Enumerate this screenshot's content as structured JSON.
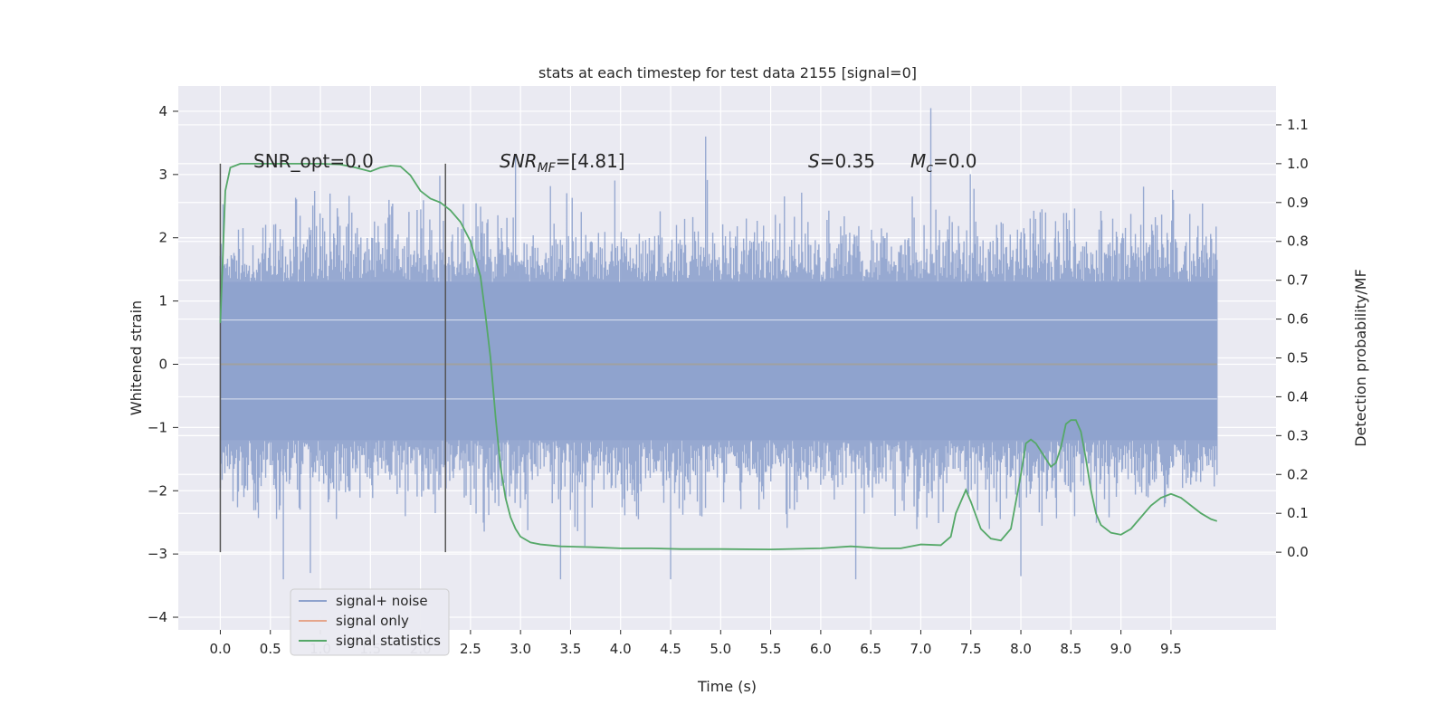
{
  "chart_data": {
    "type": "line",
    "title": "stats at each timestep for test data 2155 [signal=0]",
    "xlabel": "Time (s)",
    "ylabel_left": "Whitened strain",
    "ylabel_right": "Detection probability/MF",
    "xlim": [
      -0.42,
      10.55
    ],
    "ylim_left": [
      -4.2,
      4.4
    ],
    "ylim_right": [
      -0.2,
      1.2
    ],
    "x_ticks": [
      "0.0",
      "0.5",
      "1.0",
      "1.5",
      "2.0",
      "2.5",
      "3.0",
      "3.5",
      "4.0",
      "4.5",
      "5.0",
      "5.5",
      "6.0",
      "6.5",
      "7.0",
      "7.5",
      "8.0",
      "8.5",
      "9.0",
      "9.5"
    ],
    "y_left_ticks": [
      "4",
      "3",
      "2",
      "1",
      "0",
      "−1",
      "−2",
      "−3",
      "−4"
    ],
    "y_right_ticks": [
      "1.1",
      "1.0",
      "0.9",
      "0.8",
      "0.7",
      "0.6",
      "0.5",
      "0.4",
      "0.3",
      "0.2",
      "0.1",
      "0.0"
    ],
    "grid": true,
    "legend_position": "lower-left",
    "annotations": {
      "snr_opt": "SNR_opt=0.0",
      "snr_mf_sym": "SNR",
      "snr_mf_sub": "MF",
      "snr_mf_val": "=[4.81]",
      "s_sym": "S",
      "s_val": "=0.35",
      "mc_sym": "M",
      "mc_sub": "c",
      "mc_val": "=0.0"
    },
    "vlines_x": [
      0.0,
      2.25
    ],
    "noise_band": {
      "x_range": [
        0.0,
        9.96
      ],
      "typical_range_strain": [
        -1.2,
        1.3
      ],
      "envelope_strain": [
        -3.6,
        4.0
      ],
      "peak_x": [
        0.63,
        0.9,
        2.95,
        3.4,
        4.5,
        4.85,
        6.35,
        7.1,
        8.0
      ],
      "peak_strain": [
        -3.4,
        -3.3,
        3.3,
        -3.4,
        -3.4,
        3.6,
        -3.4,
        4.05,
        -3.35
      ]
    },
    "series": [
      {
        "name": "signal+ noise",
        "color": "#8ea2cd",
        "style": "dense oscillating noise"
      },
      {
        "name": "signal only",
        "color": "#e5a58c",
        "x": [
          0.0,
          9.96
        ],
        "y": [
          0.0,
          0.0
        ]
      },
      {
        "name": "signal statistics",
        "color": "#55a868",
        "axis": "right",
        "x": [
          0.0,
          0.05,
          0.1,
          0.15,
          0.2,
          0.3,
          0.5,
          0.7,
          1.0,
          1.2,
          1.35,
          1.5,
          1.6,
          1.7,
          1.8,
          1.9,
          2.0,
          2.1,
          2.2,
          2.3,
          2.4,
          2.5,
          2.6,
          2.65,
          2.7,
          2.75,
          2.8,
          2.85,
          2.9,
          2.95,
          3.0,
          3.1,
          3.2,
          3.4,
          3.7,
          4.0,
          4.3,
          4.6,
          4.8,
          5.0,
          5.5,
          6.0,
          6.3,
          6.6,
          6.8,
          7.0,
          7.2,
          7.3,
          7.35,
          7.4,
          7.45,
          7.5,
          7.6,
          7.7,
          7.8,
          7.9,
          8.0,
          8.05,
          8.1,
          8.15,
          8.2,
          8.3,
          8.35,
          8.4,
          8.45,
          8.5,
          8.55,
          8.6,
          8.65,
          8.7,
          8.75,
          8.8,
          8.9,
          9.0,
          9.1,
          9.2,
          9.3,
          9.4,
          9.5,
          9.6,
          9.7,
          9.8,
          9.9,
          9.96
        ],
        "y": [
          0.59,
          0.93,
          0.99,
          0.995,
          1.0,
          1.0,
          1.0,
          1.0,
          1.0,
          0.998,
          0.99,
          0.98,
          0.99,
          0.995,
          0.993,
          0.97,
          0.93,
          0.91,
          0.9,
          0.88,
          0.85,
          0.8,
          0.71,
          0.61,
          0.5,
          0.35,
          0.22,
          0.14,
          0.09,
          0.06,
          0.04,
          0.025,
          0.02,
          0.015,
          0.013,
          0.01,
          0.01,
          0.008,
          0.008,
          0.008,
          0.007,
          0.01,
          0.015,
          0.01,
          0.01,
          0.02,
          0.018,
          0.04,
          0.1,
          0.13,
          0.16,
          0.13,
          0.06,
          0.035,
          0.03,
          0.06,
          0.2,
          0.28,
          0.29,
          0.28,
          0.26,
          0.22,
          0.23,
          0.27,
          0.33,
          0.34,
          0.34,
          0.31,
          0.24,
          0.16,
          0.1,
          0.07,
          0.05,
          0.045,
          0.06,
          0.09,
          0.12,
          0.14,
          0.15,
          0.14,
          0.12,
          0.1,
          0.085,
          0.08
        ]
      }
    ]
  }
}
